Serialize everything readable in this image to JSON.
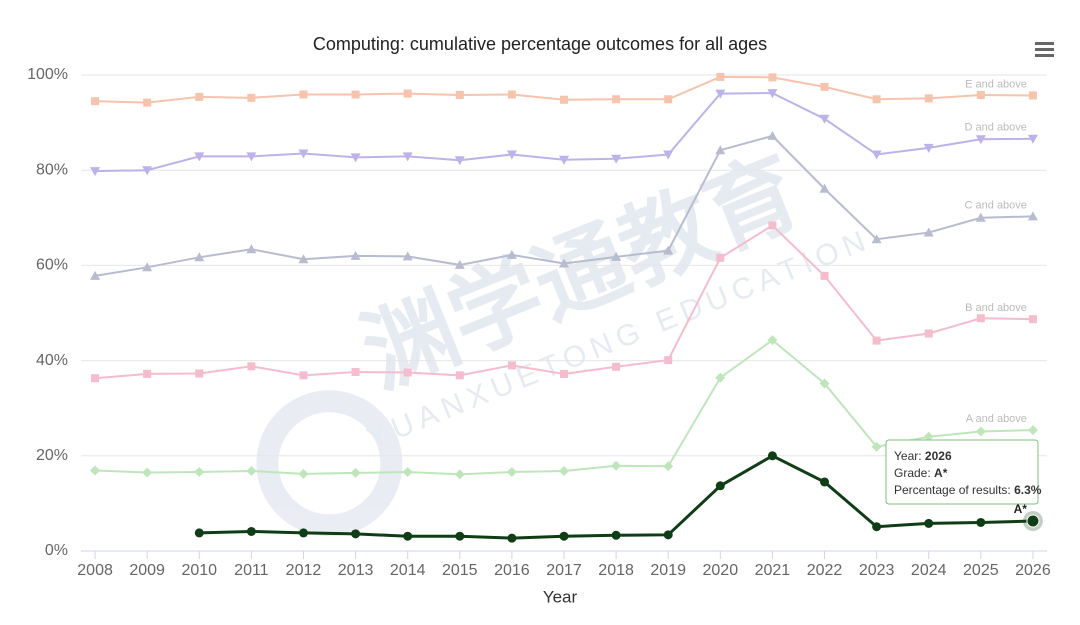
{
  "chart_data": {
    "type": "line",
    "title": "Computing: cumulative percentage outcomes for all ages",
    "x_label": "Year",
    "x": [
      2008,
      2009,
      2010,
      2011,
      2012,
      2013,
      2014,
      2015,
      2016,
      2017,
      2018,
      2019,
      2020,
      2021,
      2022,
      2023,
      2024,
      2025,
      2026
    ],
    "xlim": [
      2007.73,
      2026.27
    ],
    "xticks": [
      2008,
      2009,
      2010,
      2011,
      2012,
      2013,
      2014,
      2015,
      2016,
      2017,
      2018,
      2019,
      2020,
      2021,
      2022,
      2023,
      2024,
      2025,
      2026
    ],
    "ylim": [
      0,
      100
    ],
    "yticks": [
      {
        "value": 0,
        "label": "0%"
      },
      {
        "value": 20,
        "label": "20%"
      },
      {
        "value": 40,
        "label": "40%"
      },
      {
        "value": 60,
        "label": "60%"
      },
      {
        "value": 80,
        "label": "80%"
      },
      {
        "value": 100,
        "label": "100%"
      }
    ],
    "grid": true,
    "series": [
      {
        "name": "E and above",
        "color": "#f6c3ad",
        "marker": "square",
        "values": [
          94.5,
          94.2,
          95.4,
          95.2,
          95.9,
          95.9,
          96.1,
          95.8,
          95.9,
          94.8,
          94.9,
          94.9,
          99.6,
          99.5,
          97.5,
          94.9,
          95.1,
          95.8,
          95.7
        ]
      },
      {
        "name": "D and above",
        "color": "#bdb2ea",
        "marker": "triangle-down",
        "values": [
          79.8,
          80.0,
          82.9,
          82.9,
          83.5,
          82.7,
          82.9,
          82.1,
          83.3,
          82.2,
          82.4,
          83.3,
          96.1,
          96.2,
          90.8,
          83.3,
          84.7,
          86.5,
          86.6
        ]
      },
      {
        "name": "C and above",
        "color": "#b7bccf",
        "marker": "triangle",
        "values": [
          57.8,
          59.6,
          61.7,
          63.4,
          61.3,
          62.0,
          61.9,
          60.1,
          62.2,
          60.4,
          61.8,
          63.1,
          84.2,
          87.2,
          76.1,
          65.5,
          66.9,
          70.0,
          70.3
        ]
      },
      {
        "name": "B and above",
        "color": "#f5bccd",
        "marker": "square",
        "values": [
          36.3,
          37.2,
          37.3,
          38.8,
          36.9,
          37.6,
          37.5,
          36.9,
          39.0,
          37.2,
          38.7,
          40.1,
          61.6,
          68.4,
          57.8,
          44.2,
          45.7,
          48.9,
          48.7
        ]
      },
      {
        "name": "A and above",
        "color": "#bfe6bb",
        "marker": "diamond",
        "values": [
          16.9,
          16.5,
          16.6,
          16.8,
          16.2,
          16.4,
          16.6,
          16.1,
          16.6,
          16.8,
          17.9,
          17.8,
          36.4,
          44.3,
          35.2,
          21.9,
          24.0,
          25.1,
          25.4
        ]
      },
      {
        "name": "A*",
        "color": "#0f3d16",
        "marker": "circle",
        "highlight": true,
        "values": [
          null,
          null,
          3.8,
          4.1,
          3.8,
          3.6,
          3.1,
          3.1,
          2.7,
          3.1,
          3.3,
          3.4,
          13.7,
          20.0,
          14.5,
          5.1,
          5.8,
          6.0,
          6.3
        ]
      }
    ],
    "tooltip": [
      [
        "Year: ",
        "2026"
      ],
      [
        "Grade: ",
        "A*"
      ],
      [
        "Percentage of results: ",
        "6.3%"
      ]
    ],
    "watermark": [
      "渊学通教育",
      "YUANXUETONG EDUCATION"
    ]
  }
}
